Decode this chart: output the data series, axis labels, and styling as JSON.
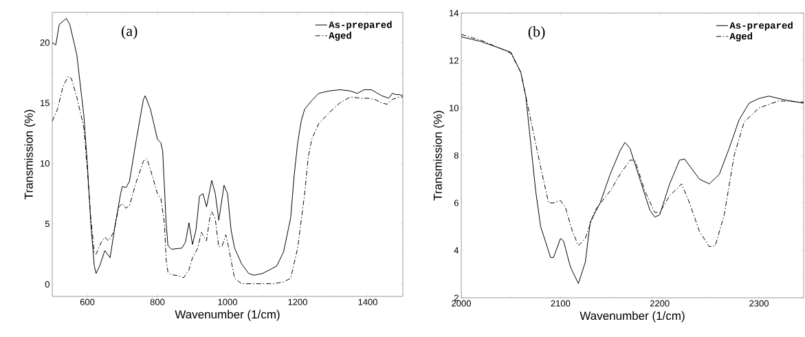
{
  "chart_data": [
    {
      "type": "line",
      "xlabel": "Wavenumber (1/cm)",
      "ylabel": "Transmission (%)",
      "annotations": [
        "(a)"
      ],
      "xlim": [
        500,
        1500
      ],
      "ylim": [
        -1,
        22.5
      ],
      "xticks": [
        600,
        800,
        1000,
        1200,
        1400
      ],
      "yticks": [
        0,
        5,
        10,
        15,
        20
      ],
      "legend": "top right",
      "series": [
        {
          "name": "As-prepared",
          "color": "#000000",
          "line_style": "solid",
          "x": [
            500,
            510,
            520,
            540,
            550,
            570,
            590,
            600,
            610,
            620,
            625,
            635,
            650,
            665,
            680,
            695,
            700,
            710,
            720,
            740,
            760,
            765,
            780,
            800,
            810,
            815,
            825,
            830,
            840,
            870,
            880,
            890,
            900,
            910,
            920,
            930,
            940,
            955,
            965,
            975,
            990,
            1000,
            1010,
            1020,
            1040,
            1060,
            1075,
            1100,
            1140,
            1160,
            1180,
            1190,
            1200,
            1210,
            1220,
            1240,
            1260,
            1290,
            1320,
            1350,
            1370,
            1390,
            1410,
            1440,
            1460,
            1470,
            1480,
            1490,
            1500
          ],
          "values": [
            20,
            19.8,
            21.5,
            22,
            21.5,
            19,
            14,
            10,
            5,
            1.5,
            0.9,
            1.5,
            2.8,
            2.2,
            5,
            7.5,
            8.1,
            8,
            8.5,
            12,
            15.3,
            15.6,
            14.5,
            12,
            11.7,
            11,
            5,
            3.2,
            2.9,
            3.0,
            3.5,
            5.1,
            3.3,
            4.5,
            7.3,
            7.5,
            6.4,
            8.6,
            7.5,
            5.3,
            8.2,
            7.5,
            4.5,
            3,
            1.7,
            0.9,
            0.75,
            0.9,
            1.5,
            2.7,
            5.5,
            9,
            11.7,
            13.5,
            14.5,
            15.2,
            15.8,
            16.0,
            16.1,
            16,
            15.8,
            16.1,
            16.1,
            15.6,
            15.4,
            15.8,
            15.7,
            15.7,
            15.6
          ]
        },
        {
          "name": "Aged",
          "color": "#000000",
          "line_style": "dashdot",
          "x": [
            500,
            515,
            530,
            545,
            555,
            570,
            590,
            600,
            610,
            620,
            625,
            640,
            650,
            660,
            675,
            690,
            700,
            710,
            720,
            740,
            760,
            770,
            780,
            800,
            810,
            820,
            825,
            830,
            840,
            860,
            875,
            890,
            900,
            915,
            925,
            940,
            950,
            955,
            965,
            975,
            985,
            995,
            1000,
            1010,
            1020,
            1040,
            1130,
            1160,
            1180,
            1200,
            1220,
            1230,
            1240,
            1260,
            1290,
            1320,
            1350,
            1380,
            1400,
            1420,
            1440,
            1455,
            1470,
            1490,
            1500
          ],
          "values": [
            13.5,
            14.5,
            16.3,
            17.2,
            17,
            15.5,
            13,
            9.5,
            5.5,
            2.6,
            2.5,
            3.5,
            3.9,
            3.6,
            4.3,
            6.4,
            6.7,
            6.3,
            6.5,
            8.5,
            10.2,
            10.4,
            9.5,
            7.5,
            7.1,
            5,
            2,
            1,
            0.8,
            0.7,
            0.55,
            1.2,
            2.2,
            3,
            4.3,
            3.6,
            5.6,
            6,
            5.4,
            3.1,
            3.2,
            4.1,
            3.5,
            2,
            0.5,
            0.05,
            0.05,
            0.2,
            0.5,
            3,
            7.5,
            10.5,
            12,
            13.3,
            14.2,
            15.0,
            15.5,
            15.4,
            15.4,
            15.3,
            15.0,
            14.9,
            15.3,
            15.5,
            15.5
          ]
        }
      ]
    },
    {
      "type": "line",
      "xlabel": "Wavenumber (1/cm)",
      "ylabel": "Transmission (%)",
      "annotations": [
        "(b)"
      ],
      "xlim": [
        2000,
        2345
      ],
      "ylim": [
        2,
        14
      ],
      "xticks": [
        2000,
        2100,
        2200,
        2300
      ],
      "yticks": [
        2,
        4,
        6,
        8,
        10,
        12,
        14
      ],
      "legend": "top right",
      "series": [
        {
          "name": "As-prepared",
          "color": "#000000",
          "line_style": "solid",
          "x": [
            2000,
            2020,
            2040,
            2050,
            2060,
            2065,
            2070,
            2075,
            2080,
            2090,
            2093,
            2100,
            2103,
            2110,
            2118,
            2125,
            2130,
            2140,
            2150,
            2160,
            2165,
            2170,
            2180,
            2190,
            2195,
            2200,
            2210,
            2220,
            2225,
            2240,
            2250,
            2260,
            2270,
            2280,
            2290,
            2300,
            2310,
            2325,
            2345
          ],
          "values": [
            13.0,
            12.8,
            12.5,
            12.35,
            11.5,
            10.5,
            8.5,
            6.5,
            5,
            3.7,
            3.7,
            4.5,
            4.4,
            3.3,
            2.6,
            3.5,
            5.2,
            6,
            7.2,
            8.2,
            8.55,
            8.3,
            7,
            5.7,
            5.4,
            5.5,
            6.8,
            7.8,
            7.85,
            7,
            6.8,
            7.2,
            8.3,
            9.5,
            10.2,
            10.4,
            10.5,
            10.35,
            10.2
          ]
        },
        {
          "name": "Aged",
          "color": "#000000",
          "line_style": "dashdot",
          "x": [
            2000,
            2020,
            2040,
            2050,
            2060,
            2070,
            2080,
            2088,
            2093,
            2100,
            2105,
            2112,
            2118,
            2125,
            2135,
            2150,
            2160,
            2170,
            2175,
            2185,
            2195,
            2200,
            2210,
            2222,
            2230,
            2240,
            2250,
            2256,
            2265,
            2275,
            2285,
            2300,
            2320,
            2345
          ],
          "values": [
            13.1,
            12.85,
            12.5,
            12.3,
            11.5,
            9.5,
            7.5,
            6.0,
            6.0,
            6.1,
            5.8,
            4.8,
            4.2,
            4.5,
            5.7,
            6.5,
            7.2,
            7.8,
            7.8,
            6.5,
            5.6,
            5.6,
            6.3,
            6.8,
            6.0,
            4.8,
            4.15,
            4.2,
            5.5,
            8,
            9.4,
            10.0,
            10.3,
            10.25
          ]
        }
      ]
    }
  ]
}
